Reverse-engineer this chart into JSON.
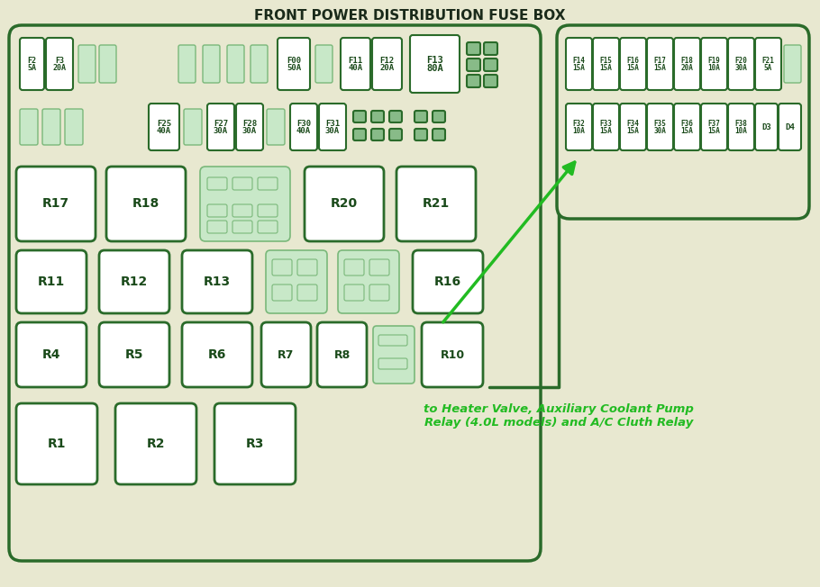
{
  "title": "FRONT POWER DISTRIBUTION FUSE BOX",
  "bg_color": "#e8e8d0",
  "main_fill": "#e8e8d0",
  "border_color": "#2a6b2a",
  "fuse_fill": "#ffffff",
  "fuse_border": "#2a6b2a",
  "ghost_fill": "#c8e8c8",
  "ghost_border": "#7ab87a",
  "dark_fill": "#88bb88",
  "dark_border": "#2a6b2a",
  "text_color": "#1a4a1a",
  "annotation_color": "#22bb22",
  "title_color": "#1a2a1a",
  "annotation_text": "to Heater Valve, Auxiliary Coolant Pump\nRelay (4.0L models) and A/C Cluth Relay",
  "right_fuses_row1": [
    [
      "F14",
      "15A"
    ],
    [
      "F15",
      "15A"
    ],
    [
      "F16",
      "15A"
    ],
    [
      "F17",
      "15A"
    ],
    [
      "F18",
      "20A"
    ],
    [
      "F19",
      "10A"
    ],
    [
      "F20",
      "30A"
    ],
    [
      "F21",
      "5A"
    ]
  ],
  "right_fuses_row2": [
    [
      "F32",
      "10A"
    ],
    [
      "F33",
      "15A"
    ],
    [
      "F34",
      "15A"
    ],
    [
      "F35",
      "30A"
    ],
    [
      "F36",
      "15A"
    ],
    [
      "F37",
      "15A"
    ],
    [
      "F38",
      "10A"
    ],
    [
      "D3",
      ""
    ],
    [
      "D4",
      ""
    ]
  ]
}
